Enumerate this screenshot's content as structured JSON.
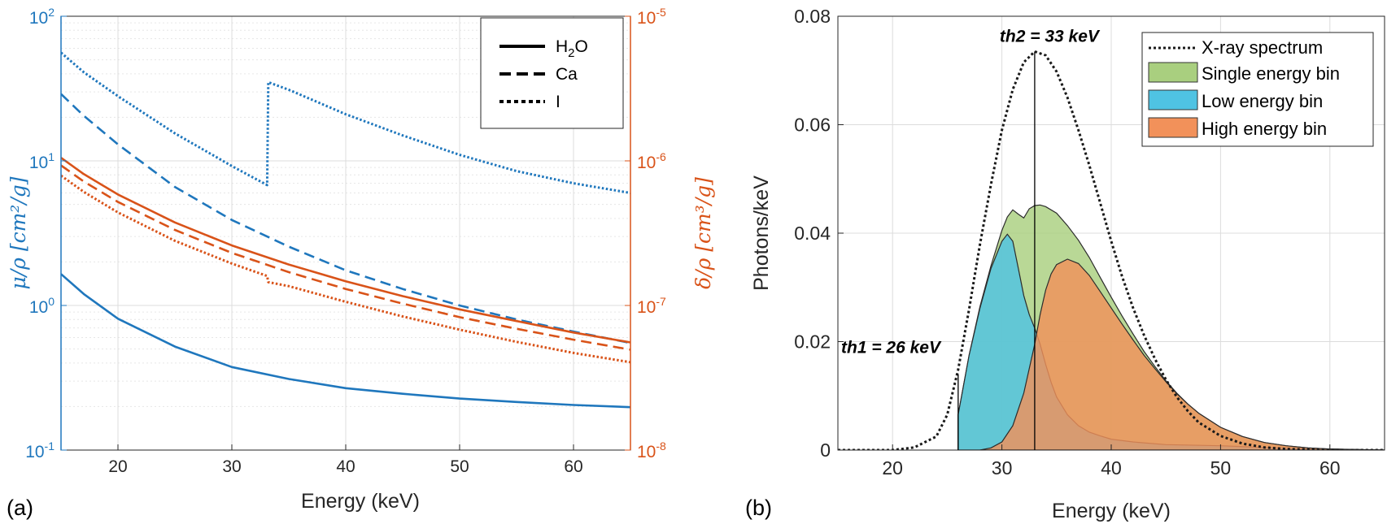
{
  "panel_labels": [
    "(a)",
    "(b)"
  ],
  "colors": {
    "attenuation": "#1f77bd",
    "phase": "#d95319",
    "spectrum": "#1a1a1a",
    "single_bin": "#a9cf7f",
    "low_bin": "#4fc3e3",
    "high_bin": "#f2915a"
  },
  "chart_data": [
    {
      "type": "line",
      "xlabel": "Energy (keV)",
      "ylabel_left": "μ/ρ [cm²/g]",
      "ylabel_right": "δ/ρ [cm³/g]",
      "xlim": [
        15,
        65
      ],
      "ylim_left": [
        0.1,
        100
      ],
      "ylim_right": [
        1e-08,
        1e-05
      ],
      "yscale_left": "log",
      "yscale_right": "log",
      "grid": true,
      "legend_position": "top-right",
      "x_ticks": [
        "20",
        "30",
        "40",
        "50",
        "60"
      ],
      "y_left_ticks": [
        {
          "base": "10",
          "exp": "-1"
        },
        {
          "base": "10",
          "exp": "0"
        },
        {
          "base": "10",
          "exp": "1"
        },
        {
          "base": "10",
          "exp": "2"
        }
      ],
      "y_right_ticks": [
        {
          "base": "10",
          "exp": "-8"
        },
        {
          "base": "10",
          "exp": "-7"
        },
        {
          "base": "10",
          "exp": "-6"
        },
        {
          "base": "10",
          "exp": "-5"
        }
      ],
      "legend": [
        {
          "label": "H",
          "sub": "2",
          "label_end": "O",
          "style": "solid"
        },
        {
          "label": "Ca",
          "style": "dashed"
        },
        {
          "label": "I",
          "style": "dotted"
        }
      ],
      "series": [
        {
          "material": "H2O",
          "quantity": "mu_rho",
          "axis": "left",
          "style": "solid",
          "x": [
            15,
            17,
            20,
            25,
            30,
            35,
            40,
            45,
            50,
            55,
            60,
            65
          ],
          "y": [
            1.65,
            1.2,
            0.81,
            0.52,
            0.375,
            0.31,
            0.268,
            0.245,
            0.227,
            0.215,
            0.205,
            0.198
          ]
        },
        {
          "material": "Ca",
          "quantity": "mu_rho",
          "axis": "left",
          "style": "dashed",
          "x": [
            15,
            17,
            20,
            25,
            30,
            35,
            40,
            45,
            50,
            55,
            60,
            65
          ],
          "y": [
            29,
            20.5,
            13,
            6.6,
            3.9,
            2.55,
            1.75,
            1.3,
            1.0,
            0.8,
            0.66,
            0.55
          ]
        },
        {
          "material": "I",
          "quantity": "mu_rho",
          "axis": "left",
          "style": "dotted",
          "x": [
            15,
            17,
            20,
            25,
            30,
            33.1,
            33.2,
            35,
            40,
            45,
            50,
            55,
            60,
            65
          ],
          "y": [
            56,
            41,
            28,
            15.5,
            9.2,
            6.8,
            35,
            31,
            21,
            15,
            11,
            8.5,
            7.0,
            6.0
          ]
        },
        {
          "material": "H2O",
          "quantity": "delta_rho",
          "axis": "right",
          "style": "solid",
          "x": [
            15,
            17,
            20,
            25,
            30,
            35,
            40,
            45,
            50,
            55,
            60,
            65
          ],
          "y": [
            1.05e-06,
            8.1e-07,
            5.85e-07,
            3.75e-07,
            2.6e-07,
            1.92e-07,
            1.47e-07,
            1.16e-07,
            9.4e-08,
            7.8e-08,
            6.5e-08,
            5.55e-08
          ]
        },
        {
          "material": "Ca",
          "quantity": "delta_rho",
          "axis": "right",
          "style": "dashed",
          "x": [
            15,
            17,
            20,
            25,
            30,
            35,
            40,
            45,
            50,
            55,
            60,
            65
          ],
          "y": [
            9.3e-07,
            7.2e-07,
            5.2e-07,
            3.33e-07,
            2.31e-07,
            1.7e-07,
            1.3e-07,
            1.03e-07,
            8.3e-08,
            6.9e-08,
            5.8e-08,
            4.95e-08
          ]
        },
        {
          "material": "I",
          "quantity": "delta_rho",
          "axis": "right",
          "style": "dotted",
          "x": [
            15,
            17,
            20,
            25,
            30,
            33.1,
            33.2,
            35,
            40,
            45,
            50,
            55,
            60,
            65
          ],
          "y": [
            7.9e-07,
            6.1e-07,
            4.4e-07,
            2.8e-07,
            1.95e-07,
            1.6e-07,
            1.45e-07,
            1.36e-07,
            1.06e-07,
            8.4e-08,
            6.8e-08,
            5.6e-08,
            4.7e-08,
            4.05e-08
          ]
        }
      ]
    },
    {
      "type": "area",
      "xlabel": "Energy (keV)",
      "ylabel": "Photons/keV",
      "xlim": [
        15,
        65
      ],
      "ylim": [
        0,
        0.08
      ],
      "grid": true,
      "legend_position": "top-right",
      "x_ticks": [
        "20",
        "30",
        "40",
        "50",
        "60"
      ],
      "y_ticks": [
        "0",
        "0.02",
        "0.04",
        "0.06",
        "0.08"
      ],
      "annotations": [
        {
          "text": "th1 = 26 keV",
          "x": 26,
          "line_top": 0.014
        },
        {
          "text": "th2 = 33 keV",
          "x": 33,
          "line_top": 0.0735
        }
      ],
      "series": [
        {
          "name": "X-ray spectrum",
          "style": "dotted",
          "x": [
            15,
            20,
            22,
            24,
            25,
            26,
            27,
            28,
            29,
            30,
            31,
            32,
            33,
            34,
            35,
            36,
            37,
            38,
            39,
            40,
            41,
            42,
            43,
            44,
            45,
            46,
            47,
            48,
            50,
            52,
            54,
            56,
            58,
            60,
            62,
            65
          ],
          "y": [
            0,
            0,
            0.0005,
            0.0025,
            0.0065,
            0.0148,
            0.026,
            0.038,
            0.049,
            0.059,
            0.0665,
            0.0715,
            0.0735,
            0.0728,
            0.0698,
            0.065,
            0.059,
            0.0525,
            0.0455,
            0.0385,
            0.032,
            0.0262,
            0.0212,
            0.0168,
            0.013,
            0.0098,
            0.0072,
            0.0051,
            0.0026,
            0.0012,
            0.0005,
            0.0002,
            0.0001,
            0,
            0,
            0
          ]
        },
        {
          "name": "Single energy bin",
          "style": "fill",
          "x": [
            26,
            27,
            28,
            29,
            30,
            30.5,
            31,
            31.5,
            32,
            32.5,
            33,
            33.5,
            34,
            35,
            36,
            37,
            38,
            39,
            40,
            41,
            42,
            43,
            44,
            45,
            46,
            47,
            48,
            50,
            52,
            54,
            56,
            58,
            60,
            62,
            65
          ],
          "y": [
            0.0065,
            0.0175,
            0.0265,
            0.034,
            0.0405,
            0.043,
            0.0443,
            0.0435,
            0.0428,
            0.0445,
            0.0451,
            0.0452,
            0.0449,
            0.0437,
            0.0414,
            0.0387,
            0.0355,
            0.0318,
            0.0282,
            0.0247,
            0.0214,
            0.0182,
            0.0154,
            0.0128,
            0.0105,
            0.0085,
            0.0068,
            0.0042,
            0.0025,
            0.0014,
            0.0008,
            0.0004,
            0.0002,
            0.0001,
            0
          ]
        },
        {
          "name": "Low energy bin",
          "style": "fill",
          "x": [
            26,
            27,
            28,
            29,
            30,
            30.5,
            31,
            31.5,
            32,
            32.5,
            33,
            33.5,
            34,
            34.5,
            35,
            36,
            37,
            38,
            39,
            40,
            42,
            45,
            50,
            55,
            60,
            65
          ],
          "y": [
            0.0065,
            0.0175,
            0.0262,
            0.0335,
            0.0385,
            0.0398,
            0.0385,
            0.0335,
            0.0285,
            0.025,
            0.0225,
            0.0195,
            0.0158,
            0.0125,
            0.0098,
            0.0065,
            0.0045,
            0.0033,
            0.0026,
            0.002,
            0.0015,
            0.001,
            0.0008,
            0.0004,
            0.0002,
            0
          ]
        },
        {
          "name": "High energy bin",
          "style": "fill",
          "x": [
            28,
            29,
            30,
            31,
            32,
            33,
            33.5,
            34,
            34.5,
            35,
            36,
            37,
            38,
            39,
            40,
            41,
            42,
            43,
            44,
            45,
            46,
            47,
            48,
            50,
            52,
            54,
            56,
            58,
            60,
            62,
            65
          ],
          "y": [
            0,
            0.0004,
            0.0015,
            0.0045,
            0.0105,
            0.0195,
            0.025,
            0.0295,
            0.0325,
            0.0342,
            0.0352,
            0.0344,
            0.0322,
            0.0292,
            0.0262,
            0.0232,
            0.0203,
            0.0175,
            0.015,
            0.0126,
            0.0104,
            0.0085,
            0.0068,
            0.0042,
            0.0025,
            0.0014,
            0.0008,
            0.0004,
            0.0002,
            0.0001,
            0
          ]
        }
      ]
    }
  ]
}
